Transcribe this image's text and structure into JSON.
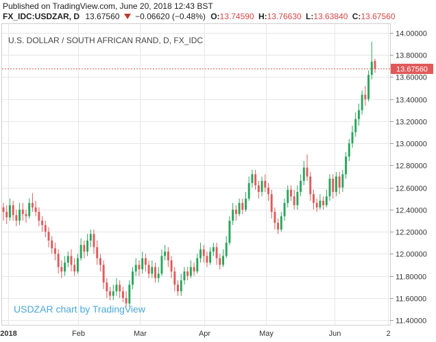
{
  "header": {
    "published": "Published on TradingView.com, June 20, 2018 12:43 BST",
    "symbol": "FX_IDC:USDZAR, D",
    "last": "13.67560",
    "change": "−0.06620 (−0.48%)",
    "open_label": "O:",
    "open": "13.74590",
    "high_label": "H:",
    "high": "13.76630",
    "low_label": "L:",
    "low": "13.63840",
    "close_label": "C:",
    "close": "13.67560"
  },
  "watermark": "USDZAR chart by TradingView",
  "colors": {
    "up": "#26a65b",
    "down": "#e05a5a",
    "grid": "#e6e6e6",
    "price_line": "#e05a5a",
    "price_label_bg": "#e05a5a",
    "watermark": "#4aa8d8"
  },
  "chart_data": {
    "type": "candlestick",
    "title": "U.S. DOLLAR / SOUTH AFRICAN RAND, D, FX_IDC",
    "ylim": [
      11.4,
      14.0
    ],
    "yticks": [
      "14.00000",
      "13.80000",
      "13.60000",
      "13.40000",
      "13.20000",
      "13.00000",
      "12.80000",
      "12.60000",
      "12.40000",
      "12.20000",
      "12.00000",
      "11.80000",
      "11.60000",
      "11.40000"
    ],
    "xticks": [
      "2018",
      "Feb",
      "Mar",
      "Apr",
      "May",
      "Jun",
      "2"
    ],
    "last_price_label": "13.67560",
    "last_price": 13.6756,
    "candles": [
      {
        "o": 12.42,
        "c": 12.38,
        "h": 12.46,
        "l": 12.3
      },
      {
        "o": 12.38,
        "c": 12.33,
        "h": 12.44,
        "l": 12.27
      },
      {
        "o": 12.33,
        "c": 12.44,
        "h": 12.5,
        "l": 12.3
      },
      {
        "o": 12.44,
        "c": 12.35,
        "h": 12.48,
        "l": 12.3
      },
      {
        "o": 12.35,
        "c": 12.3,
        "h": 12.4,
        "l": 12.25
      },
      {
        "o": 12.3,
        "c": 12.4,
        "h": 12.46,
        "l": 12.26
      },
      {
        "o": 12.4,
        "c": 12.36,
        "h": 12.46,
        "l": 12.3
      },
      {
        "o": 12.36,
        "c": 12.34,
        "h": 12.4,
        "l": 12.28
      },
      {
        "o": 12.34,
        "c": 12.46,
        "h": 12.5,
        "l": 12.32
      },
      {
        "o": 12.46,
        "c": 12.42,
        "h": 12.55,
        "l": 12.38
      },
      {
        "o": 12.42,
        "c": 12.38,
        "h": 12.48,
        "l": 12.34
      },
      {
        "o": 12.38,
        "c": 12.3,
        "h": 12.42,
        "l": 12.25
      },
      {
        "o": 12.3,
        "c": 12.26,
        "h": 12.34,
        "l": 12.2
      },
      {
        "o": 12.26,
        "c": 12.2,
        "h": 12.3,
        "l": 12.15
      },
      {
        "o": 12.2,
        "c": 12.12,
        "h": 12.24,
        "l": 12.06
      },
      {
        "o": 12.12,
        "c": 12.05,
        "h": 12.16,
        "l": 12.0
      },
      {
        "o": 12.05,
        "c": 12.0,
        "h": 12.1,
        "l": 11.94
      },
      {
        "o": 12.0,
        "c": 11.88,
        "h": 12.04,
        "l": 11.82
      },
      {
        "o": 11.88,
        "c": 11.84,
        "h": 11.94,
        "l": 11.78
      },
      {
        "o": 11.84,
        "c": 11.92,
        "h": 11.98,
        "l": 11.8
      },
      {
        "o": 11.92,
        "c": 11.98,
        "h": 12.02,
        "l": 11.88
      },
      {
        "o": 11.98,
        "c": 11.9,
        "h": 12.04,
        "l": 11.84
      },
      {
        "o": 11.9,
        "c": 11.84,
        "h": 11.96,
        "l": 11.8
      },
      {
        "o": 11.84,
        "c": 11.96,
        "h": 12.0,
        "l": 11.82
      },
      {
        "o": 11.96,
        "c": 12.08,
        "h": 12.14,
        "l": 11.94
      },
      {
        "o": 12.08,
        "c": 12.02,
        "h": 12.12,
        "l": 11.96
      },
      {
        "o": 12.02,
        "c": 12.12,
        "h": 12.18,
        "l": 11.98
      },
      {
        "o": 12.12,
        "c": 12.18,
        "h": 12.22,
        "l": 12.06
      },
      {
        "o": 12.18,
        "c": 12.06,
        "h": 12.22,
        "l": 12.0
      },
      {
        "o": 12.06,
        "c": 11.96,
        "h": 12.12,
        "l": 11.9
      },
      {
        "o": 11.96,
        "c": 11.9,
        "h": 12.0,
        "l": 11.84
      },
      {
        "o": 11.9,
        "c": 11.74,
        "h": 11.94,
        "l": 11.68
      },
      {
        "o": 11.74,
        "c": 11.66,
        "h": 11.78,
        "l": 11.6
      },
      {
        "o": 11.66,
        "c": 11.62,
        "h": 11.7,
        "l": 11.58
      },
      {
        "o": 11.62,
        "c": 11.66,
        "h": 11.72,
        "l": 11.58
      },
      {
        "o": 11.66,
        "c": 11.72,
        "h": 11.78,
        "l": 11.62
      },
      {
        "o": 11.72,
        "c": 11.66,
        "h": 11.76,
        "l": 11.6
      },
      {
        "o": 11.66,
        "c": 11.6,
        "h": 11.7,
        "l": 11.56
      },
      {
        "o": 11.6,
        "c": 11.55,
        "h": 11.66,
        "l": 11.52
      },
      {
        "o": 11.55,
        "c": 11.72,
        "h": 11.76,
        "l": 11.52
      },
      {
        "o": 11.72,
        "c": 11.84,
        "h": 11.88,
        "l": 11.68
      },
      {
        "o": 11.84,
        "c": 11.9,
        "h": 11.96,
        "l": 11.8
      },
      {
        "o": 11.9,
        "c": 11.86,
        "h": 11.94,
        "l": 11.8
      },
      {
        "o": 11.86,
        "c": 11.96,
        "h": 12.02,
        "l": 11.82
      },
      {
        "o": 11.96,
        "c": 11.9,
        "h": 12.0,
        "l": 11.84
      },
      {
        "o": 11.9,
        "c": 11.82,
        "h": 11.94,
        "l": 11.78
      },
      {
        "o": 11.82,
        "c": 11.88,
        "h": 11.94,
        "l": 11.78
      },
      {
        "o": 11.88,
        "c": 11.78,
        "h": 11.92,
        "l": 11.74
      },
      {
        "o": 11.78,
        "c": 11.82,
        "h": 11.88,
        "l": 11.74
      },
      {
        "o": 11.82,
        "c": 11.98,
        "h": 12.04,
        "l": 11.8
      },
      {
        "o": 11.98,
        "c": 12.02,
        "h": 12.08,
        "l": 11.94
      },
      {
        "o": 12.02,
        "c": 11.94,
        "h": 12.06,
        "l": 11.88
      },
      {
        "o": 11.94,
        "c": 11.84,
        "h": 11.98,
        "l": 11.78
      },
      {
        "o": 11.84,
        "c": 11.72,
        "h": 11.88,
        "l": 11.66
      },
      {
        "o": 11.72,
        "c": 11.66,
        "h": 11.76,
        "l": 11.62
      },
      {
        "o": 11.66,
        "c": 11.76,
        "h": 11.82,
        "l": 11.62
      },
      {
        "o": 11.76,
        "c": 11.84,
        "h": 11.88,
        "l": 11.72
      },
      {
        "o": 11.84,
        "c": 11.8,
        "h": 11.88,
        "l": 11.76
      },
      {
        "o": 11.8,
        "c": 11.88,
        "h": 11.94,
        "l": 11.78
      },
      {
        "o": 11.88,
        "c": 11.84,
        "h": 11.92,
        "l": 11.8
      },
      {
        "o": 11.84,
        "c": 11.96,
        "h": 12.0,
        "l": 11.82
      },
      {
        "o": 11.96,
        "c": 12.04,
        "h": 12.1,
        "l": 11.92
      },
      {
        "o": 12.04,
        "c": 11.98,
        "h": 12.08,
        "l": 11.92
      },
      {
        "o": 11.98,
        "c": 11.92,
        "h": 12.02,
        "l": 11.88
      },
      {
        "o": 11.92,
        "c": 12.02,
        "h": 12.06,
        "l": 11.9
      },
      {
        "o": 12.02,
        "c": 12.06,
        "h": 12.1,
        "l": 11.98
      },
      {
        "o": 12.06,
        "c": 11.96,
        "h": 12.1,
        "l": 11.9
      },
      {
        "o": 11.96,
        "c": 11.9,
        "h": 12.0,
        "l": 11.86
      },
      {
        "o": 11.9,
        "c": 11.98,
        "h": 12.04,
        "l": 11.88
      },
      {
        "o": 11.98,
        "c": 12.1,
        "h": 12.16,
        "l": 11.96
      },
      {
        "o": 12.1,
        "c": 12.3,
        "h": 12.34,
        "l": 12.08
      },
      {
        "o": 12.3,
        "c": 12.4,
        "h": 12.46,
        "l": 12.26
      },
      {
        "o": 12.4,
        "c": 12.36,
        "h": 12.44,
        "l": 12.3
      },
      {
        "o": 12.36,
        "c": 12.46,
        "h": 12.5,
        "l": 12.34
      },
      {
        "o": 12.46,
        "c": 12.4,
        "h": 12.5,
        "l": 12.36
      },
      {
        "o": 12.4,
        "c": 12.5,
        "h": 12.56,
        "l": 12.38
      },
      {
        "o": 12.5,
        "c": 12.64,
        "h": 12.7,
        "l": 12.48
      },
      {
        "o": 12.64,
        "c": 12.72,
        "h": 12.76,
        "l": 12.6
      },
      {
        "o": 12.72,
        "c": 12.62,
        "h": 12.76,
        "l": 12.58
      },
      {
        "o": 12.62,
        "c": 12.56,
        "h": 12.66,
        "l": 12.5
      },
      {
        "o": 12.56,
        "c": 12.66,
        "h": 12.7,
        "l": 12.52
      },
      {
        "o": 12.66,
        "c": 12.6,
        "h": 12.72,
        "l": 12.56
      },
      {
        "o": 12.6,
        "c": 12.54,
        "h": 12.64,
        "l": 12.48
      },
      {
        "o": 12.54,
        "c": 12.38,
        "h": 12.58,
        "l": 12.32
      },
      {
        "o": 12.38,
        "c": 12.28,
        "h": 12.42,
        "l": 12.22
      },
      {
        "o": 12.28,
        "c": 12.22,
        "h": 12.32,
        "l": 12.18
      },
      {
        "o": 12.22,
        "c": 12.34,
        "h": 12.38,
        "l": 12.2
      },
      {
        "o": 12.34,
        "c": 12.46,
        "h": 12.5,
        "l": 12.3
      },
      {
        "o": 12.46,
        "c": 12.58,
        "h": 12.62,
        "l": 12.42
      },
      {
        "o": 12.58,
        "c": 12.52,
        "h": 12.62,
        "l": 12.48
      },
      {
        "o": 12.52,
        "c": 12.44,
        "h": 12.58,
        "l": 12.4
      },
      {
        "o": 12.44,
        "c": 12.56,
        "h": 12.62,
        "l": 12.4
      },
      {
        "o": 12.56,
        "c": 12.66,
        "h": 12.72,
        "l": 12.52
      },
      {
        "o": 12.66,
        "c": 12.78,
        "h": 12.84,
        "l": 12.62
      },
      {
        "o": 12.78,
        "c": 12.7,
        "h": 12.9,
        "l": 12.66
      },
      {
        "o": 12.7,
        "c": 12.54,
        "h": 12.74,
        "l": 12.48
      },
      {
        "o": 12.54,
        "c": 12.46,
        "h": 12.58,
        "l": 12.4
      },
      {
        "o": 12.46,
        "c": 12.42,
        "h": 12.5,
        "l": 12.38
      },
      {
        "o": 12.42,
        "c": 12.48,
        "h": 12.54,
        "l": 12.4
      },
      {
        "o": 12.48,
        "c": 12.44,
        "h": 12.52,
        "l": 12.4
      },
      {
        "o": 12.44,
        "c": 12.52,
        "h": 12.58,
        "l": 12.42
      },
      {
        "o": 12.52,
        "c": 12.68,
        "h": 12.72,
        "l": 12.48
      },
      {
        "o": 12.68,
        "c": 12.56,
        "h": 12.72,
        "l": 12.5
      },
      {
        "o": 12.56,
        "c": 12.7,
        "h": 12.74,
        "l": 12.52
      },
      {
        "o": 12.7,
        "c": 12.6,
        "h": 12.74,
        "l": 12.54
      },
      {
        "o": 12.6,
        "c": 12.72,
        "h": 12.76,
        "l": 12.56
      },
      {
        "o": 12.72,
        "c": 12.88,
        "h": 12.92,
        "l": 12.68
      },
      {
        "o": 12.88,
        "c": 13.0,
        "h": 13.04,
        "l": 12.84
      },
      {
        "o": 13.0,
        "c": 13.1,
        "h": 13.16,
        "l": 12.96
      },
      {
        "o": 13.1,
        "c": 13.22,
        "h": 13.28,
        "l": 13.06
      },
      {
        "o": 13.22,
        "c": 13.3,
        "h": 13.36,
        "l": 13.16
      },
      {
        "o": 13.3,
        "c": 13.44,
        "h": 13.48,
        "l": 13.26
      },
      {
        "o": 13.44,
        "c": 13.4,
        "h": 13.52,
        "l": 13.34
      },
      {
        "o": 13.4,
        "c": 13.62,
        "h": 13.66,
        "l": 13.38
      },
      {
        "o": 13.62,
        "c": 13.74,
        "h": 13.92,
        "l": 13.58
      },
      {
        "o": 13.7459,
        "c": 13.6756,
        "h": 13.7663,
        "l": 13.6384
      }
    ]
  }
}
